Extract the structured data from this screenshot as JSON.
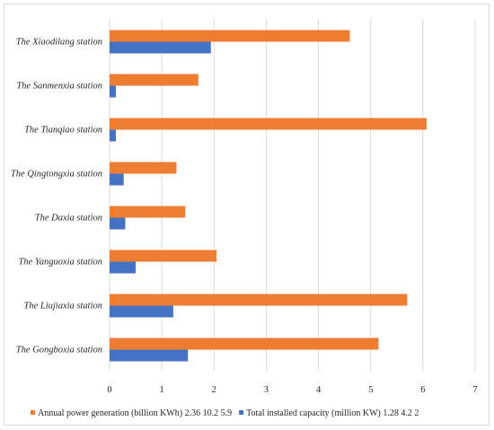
{
  "chart_data": {
    "type": "bar",
    "orientation": "horizontal",
    "categories": [
      "The Xiaodilang station",
      "The Sanmenxia station",
      "The Tianqiao station",
      "The Qingtongxia station",
      "The Daxia station",
      "The Yanguoxia station",
      "The Liujiaxia station",
      "The Gongboxia station"
    ],
    "series": [
      {
        "name": "Annual power generation (billion KWh) 2.36 10.2 5.9",
        "color": "#ed7d31",
        "values": [
          4.6,
          1.7,
          6.07,
          1.28,
          1.45,
          2.05,
          5.7,
          5.15
        ]
      },
      {
        "name": "Total installed capacity (million KW) 1.28 4.2 2",
        "color": "#4472c4",
        "values": [
          1.94,
          0.12,
          0.12,
          0.27,
          0.3,
          0.5,
          1.22,
          1.5
        ]
      }
    ],
    "xlim": [
      0,
      7
    ],
    "xticks": [
      "0",
      "1",
      "2",
      "3",
      "4",
      "5",
      "6",
      "7"
    ],
    "grid": true,
    "legend_position": "bottom"
  }
}
